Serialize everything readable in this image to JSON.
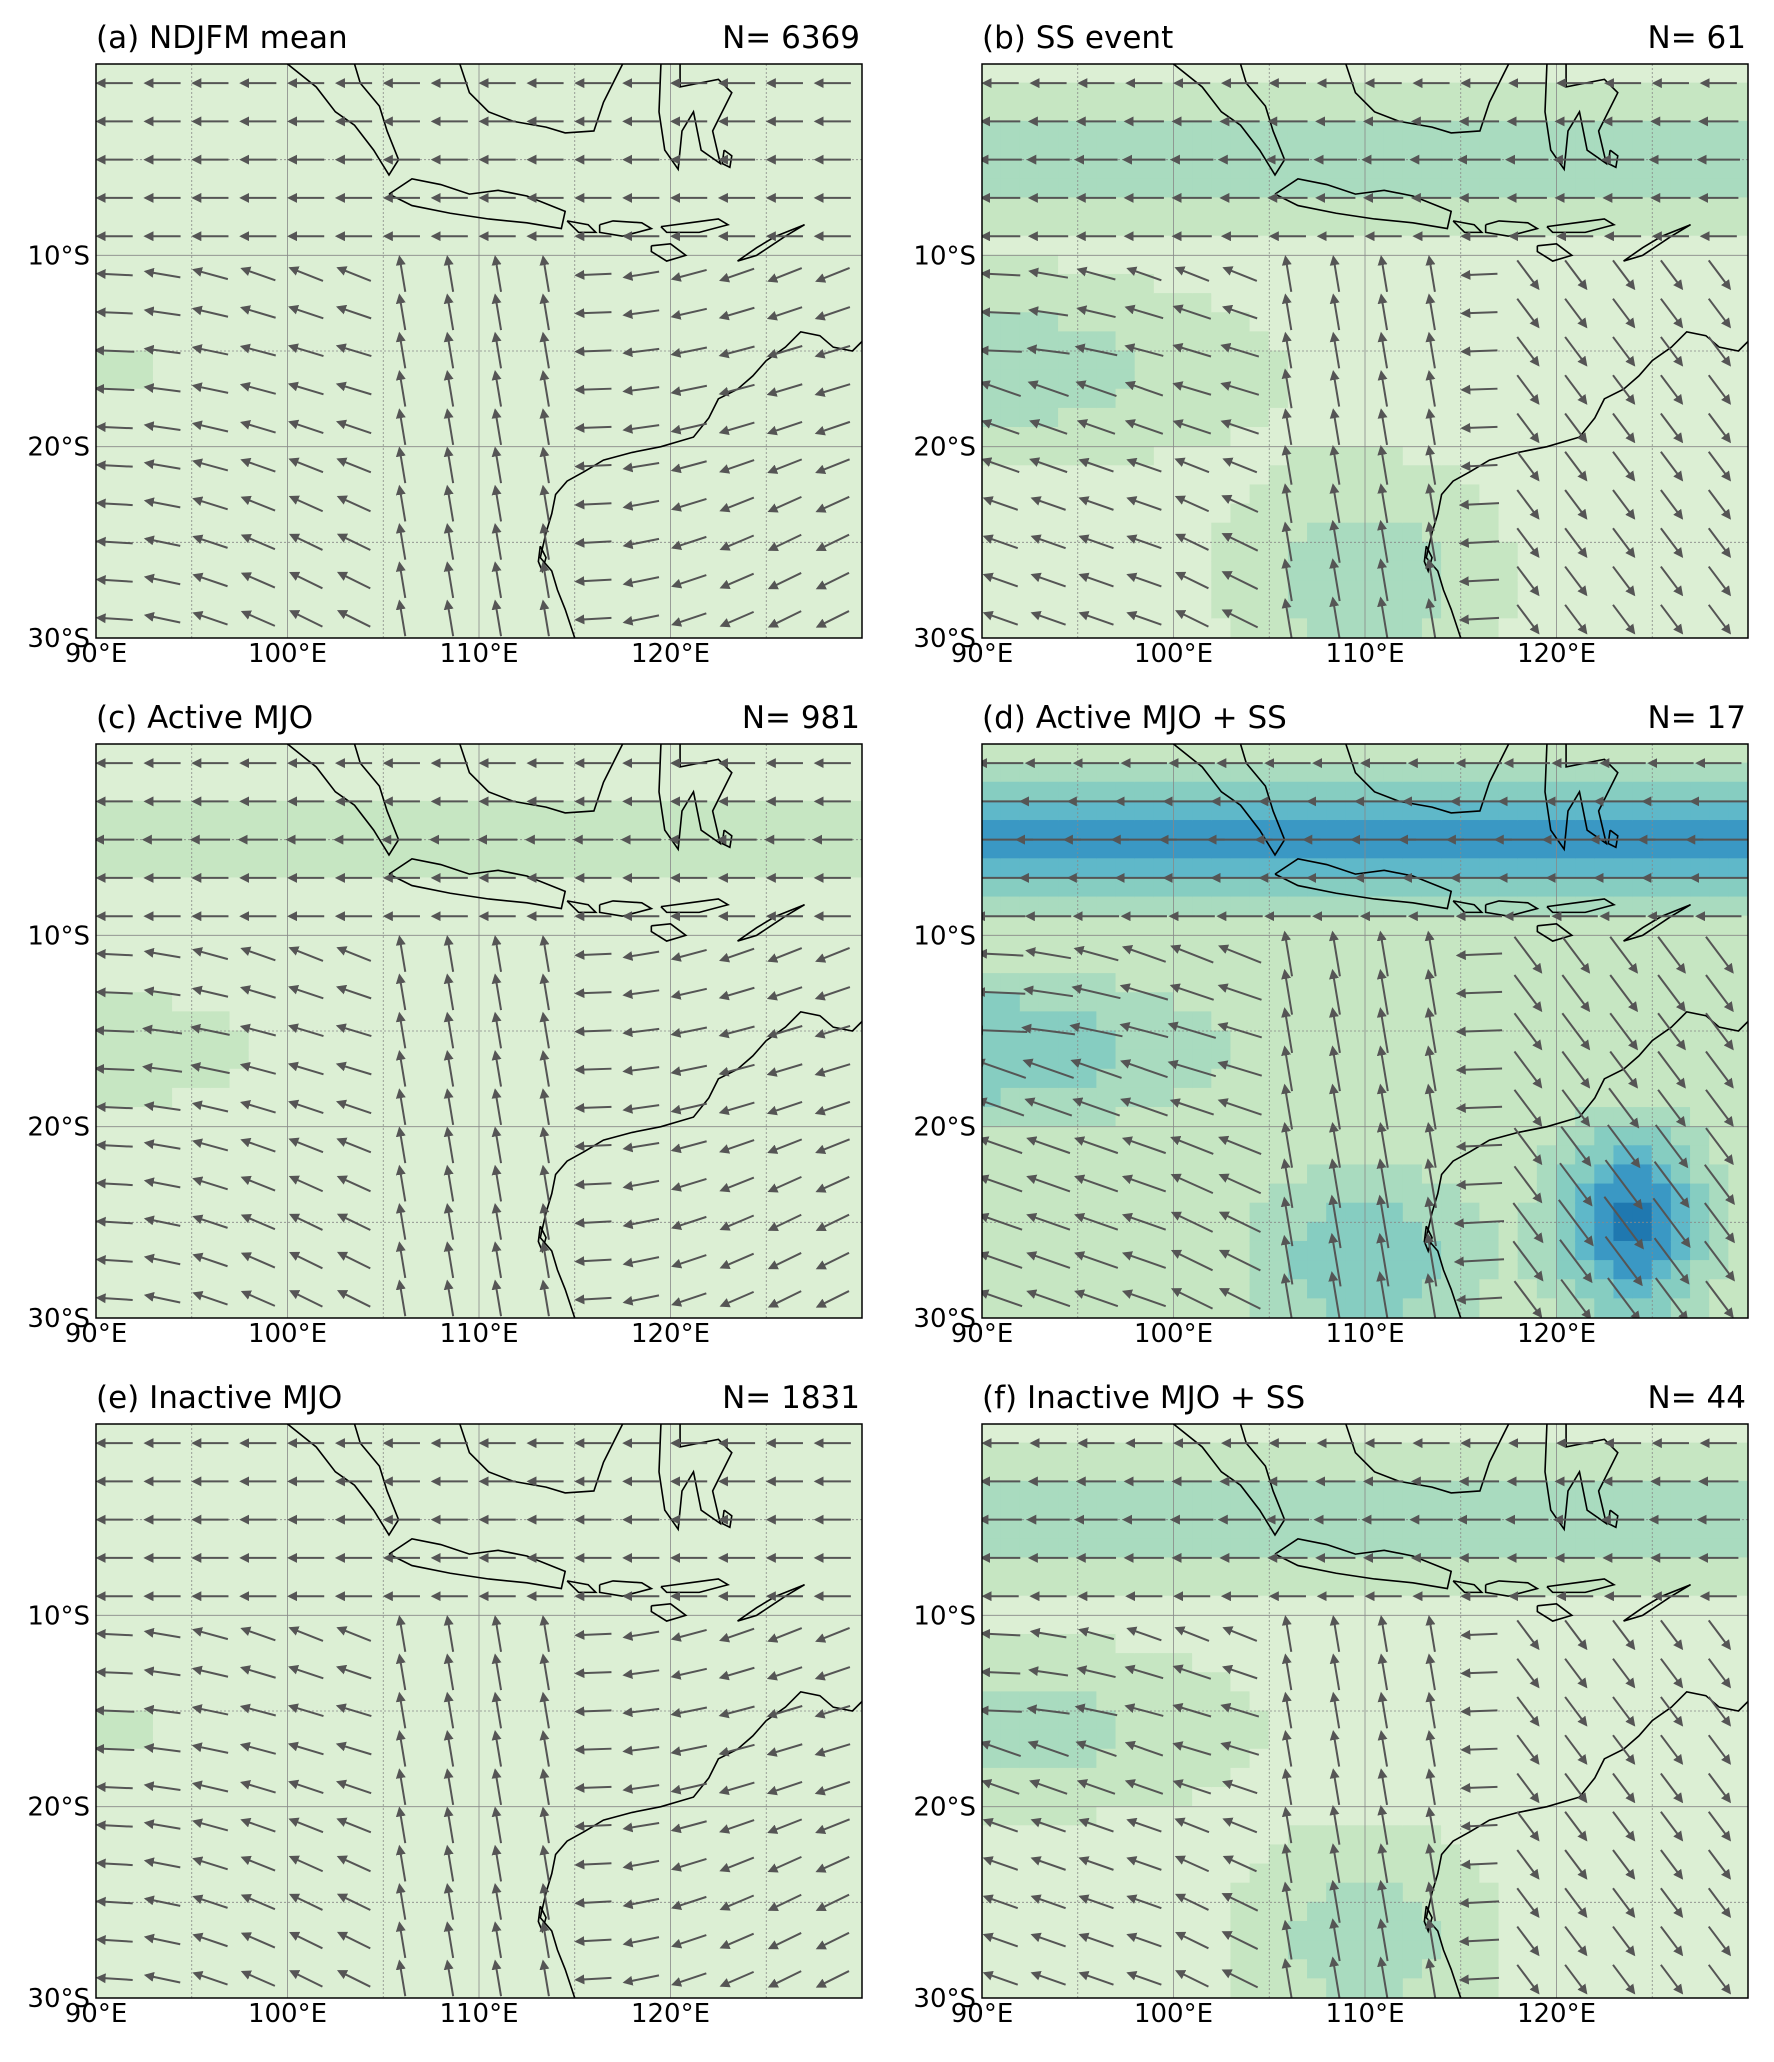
{
  "figure": {
    "axes": {
      "x_ticks": [
        "90°E",
        "100°E",
        "110°E",
        "120°E"
      ],
      "y_ticks": [
        "10°S",
        "20°S",
        "30°S"
      ]
    },
    "colors": {
      "coast": "#000000",
      "grid": "#888888",
      "arrow": "#555555",
      "shade_levels": [
        "#eef6e6",
        "#dcefd4",
        "#c6e6c2",
        "#a9dbbf",
        "#86cdc1",
        "#5fb8c9",
        "#3a98c4",
        "#1f78b0"
      ]
    },
    "panels": [
      {
        "id": "a",
        "title": "(a) NDJFM mean",
        "count": "N= 6369",
        "intensity": 0.35
      },
      {
        "id": "b",
        "title": "(b) SS event",
        "count": "N= 61",
        "intensity": 0.75
      },
      {
        "id": "c",
        "title": "(c) Active MJO",
        "count": "N= 981",
        "intensity": 0.45
      },
      {
        "id": "d",
        "title": "(d) Active MJO + SS",
        "count": "N= 17",
        "intensity": 1.0
      },
      {
        "id": "e",
        "title": "(e) Inactive MJO",
        "count": "N= 1831",
        "intensity": 0.35
      },
      {
        "id": "f",
        "title": "(f) Inactive MJO + SS",
        "count": "N= 44",
        "intensity": 0.7
      }
    ]
  }
}
